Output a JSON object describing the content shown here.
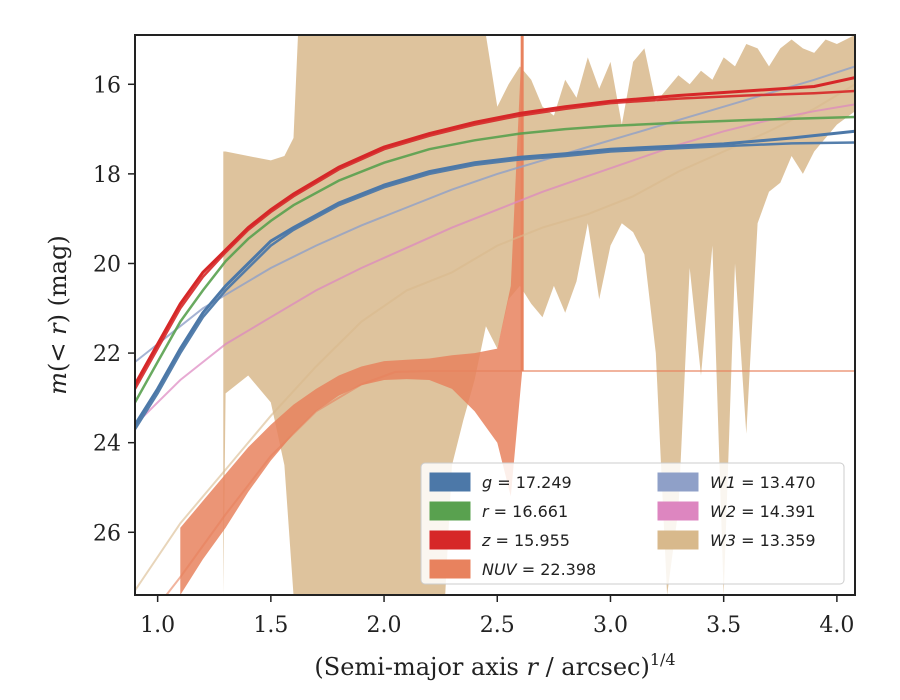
{
  "chart_data": {
    "type": "line",
    "xlabel": "(Semi-major axis r / arcsec)^(1/4)",
    "xlabel_parts": {
      "lead": "(Semi-major axis ",
      "var": "r",
      "mid": " / arcsec)",
      "sup": "1/4"
    },
    "ylabel": "m(< r) (mag)",
    "ylabel_parts": {
      "pre": "m",
      "open": "(",
      "var": "< r",
      "close": ") (mag)"
    },
    "xlim": [
      0.9,
      4.08
    ],
    "ylim": [
      27.4,
      14.9
    ],
    "y_inverted": true,
    "x_ticks": [
      "1.0",
      "1.5",
      "2.0",
      "2.5",
      "3.0",
      "3.5",
      "4.0"
    ],
    "y_ticks": [
      "16",
      "18",
      "20",
      "22",
      "24",
      "26"
    ],
    "grid": false,
    "legend_position": "lower-right",
    "legend": [
      {
        "label": "g = 17.249",
        "band": "g",
        "value": "17.249",
        "color": "#4c78a8"
      },
      {
        "label": "r = 16.661",
        "band": "r",
        "value": "16.661",
        "color": "#59a14f"
      },
      {
        "label": "z = 15.955",
        "band": "z",
        "value": "15.955",
        "color": "#d62728"
      },
      {
        "label": "NUV = 22.398",
        "band": "NUV",
        "value": "22.398",
        "color": "#e8825e"
      },
      {
        "label": "W1 = 13.470",
        "band": "W1",
        "value": "13.470",
        "color": "#8fa0c8"
      },
      {
        "label": "W2 = 14.391",
        "band": "W2",
        "value": "14.391",
        "color": "#dd86c0"
      },
      {
        "label": "W3 = 13.359",
        "band": "W3",
        "value": "13.359",
        "color": "#d8b98c"
      }
    ],
    "series": [
      {
        "name": "g",
        "color": "#4c78a8",
        "x": [
          0.9,
          1.0,
          1.1,
          1.2,
          1.3,
          1.4,
          1.5,
          1.6,
          1.8,
          2.0,
          2.2,
          2.4,
          2.6,
          2.8,
          3.0,
          3.2,
          3.5,
          3.8,
          4.08
        ],
        "y": [
          23.7,
          22.9,
          22.0,
          21.2,
          20.6,
          20.1,
          19.6,
          19.25,
          18.7,
          18.3,
          18.0,
          17.8,
          17.68,
          17.6,
          17.5,
          17.45,
          17.38,
          17.32,
          17.3
        ],
        "y_upper": [
          23.6,
          22.8,
          21.9,
          21.1,
          20.5,
          20.0,
          19.5,
          19.2,
          18.65,
          18.25,
          17.95,
          17.75,
          17.63,
          17.55,
          17.45,
          17.4,
          17.33,
          17.2,
          17.05
        ]
      },
      {
        "name": "r",
        "color": "#59a14f",
        "x": [
          0.9,
          1.0,
          1.1,
          1.2,
          1.3,
          1.4,
          1.5,
          1.6,
          1.8,
          2.0,
          2.2,
          2.4,
          2.6,
          2.8,
          3.0,
          3.3,
          3.6,
          4.08
        ],
        "y": [
          23.1,
          22.2,
          21.3,
          20.6,
          19.95,
          19.45,
          19.05,
          18.7,
          18.15,
          17.75,
          17.45,
          17.25,
          17.1,
          17.0,
          16.93,
          16.86,
          16.8,
          16.73
        ]
      },
      {
        "name": "z",
        "color": "#d62728",
        "x": [
          0.9,
          1.0,
          1.1,
          1.2,
          1.3,
          1.4,
          1.5,
          1.6,
          1.8,
          2.0,
          2.2,
          2.4,
          2.6,
          2.8,
          3.0,
          3.3,
          3.6,
          3.9,
          4.08
        ],
        "y": [
          22.8,
          21.9,
          21.0,
          20.3,
          19.75,
          19.25,
          18.85,
          18.5,
          17.9,
          17.45,
          17.15,
          16.9,
          16.7,
          16.55,
          16.42,
          16.32,
          16.25,
          16.2,
          16.15
        ],
        "y_upper": [
          22.7,
          21.8,
          20.9,
          20.2,
          19.7,
          19.2,
          18.8,
          18.45,
          17.85,
          17.4,
          17.1,
          16.85,
          16.65,
          16.5,
          16.38,
          16.25,
          16.15,
          16.05,
          15.85
        ]
      },
      {
        "name": "NUV",
        "color": "#e8825e",
        "x": [
          0.9,
          1.1,
          1.3,
          1.5,
          1.7,
          1.9,
          2.05,
          2.2,
          2.35,
          2.5,
          2.61,
          3.0,
          3.5,
          4.08
        ],
        "y": [
          28.3,
          27.0,
          25.6,
          24.3,
          23.3,
          22.7,
          22.42,
          22.4,
          22.4,
          22.4,
          22.4,
          22.4,
          22.4,
          22.4
        ],
        "band_x": [
          1.1,
          1.2,
          1.3,
          1.4,
          1.5,
          1.6,
          1.7,
          1.8,
          1.9,
          2.0,
          2.1,
          2.2,
          2.3,
          2.4,
          2.5,
          2.56,
          2.61
        ],
        "band_low": [
          27.4,
          26.6,
          25.9,
          25.1,
          24.4,
          23.8,
          23.3,
          22.95,
          22.72,
          22.6,
          22.58,
          22.6,
          22.8,
          23.3,
          24.0,
          25.2,
          22.4
        ],
        "band_high": [
          25.9,
          25.3,
          24.7,
          24.1,
          23.6,
          23.15,
          22.8,
          22.5,
          22.3,
          22.18,
          22.15,
          22.12,
          22.05,
          22.0,
          21.9,
          20.5,
          14.9
        ]
      },
      {
        "name": "W1",
        "color": "#8fa0c8",
        "x": [
          0.9,
          1.0,
          1.1,
          1.2,
          1.3,
          1.5,
          1.7,
          1.9,
          2.1,
          2.3,
          2.5,
          2.7,
          2.9,
          3.1,
          3.3,
          3.5,
          3.7,
          3.9,
          4.08
        ],
        "y": [
          22.2,
          21.8,
          21.4,
          21.0,
          20.7,
          20.1,
          19.6,
          19.15,
          18.75,
          18.35,
          18.0,
          17.7,
          17.4,
          17.1,
          16.8,
          16.5,
          16.2,
          15.9,
          15.6
        ]
      },
      {
        "name": "W2",
        "color": "#dd86c0",
        "x": [
          0.9,
          1.1,
          1.3,
          1.5,
          1.7,
          1.9,
          2.1,
          2.3,
          2.5,
          2.7,
          2.9,
          3.1,
          3.3,
          3.5,
          3.7,
          3.9,
          4.08
        ],
        "y": [
          23.6,
          22.6,
          21.8,
          21.2,
          20.6,
          20.1,
          19.65,
          19.2,
          18.8,
          18.4,
          18.05,
          17.7,
          17.35,
          17.05,
          16.8,
          16.6,
          16.45
        ]
      },
      {
        "name": "W3",
        "color": "#d8b98c",
        "x": [
          0.9,
          1.1,
          1.3,
          1.5,
          1.7,
          1.9,
          2.1,
          2.3,
          2.5,
          2.7,
          2.9,
          3.1,
          3.3,
          3.5,
          3.7,
          3.9,
          4.08
        ],
        "y": [
          27.3,
          25.8,
          24.6,
          23.4,
          22.3,
          21.3,
          20.6,
          20.2,
          19.6,
          19.2,
          18.9,
          18.5,
          17.95,
          17.5,
          17.05,
          16.55,
          16.0
        ],
        "band_x": [
          1.29,
          1.3,
          1.4,
          1.5,
          1.56,
          1.6,
          1.62,
          1.7,
          1.8,
          1.9,
          2.0,
          2.1,
          2.2,
          2.27,
          2.3,
          2.35,
          2.4,
          2.45,
          2.5,
          2.55,
          2.6,
          2.65,
          2.7,
          2.75,
          2.8,
          2.85,
          2.9,
          2.95,
          3.0,
          3.05,
          3.1,
          3.15,
          3.2,
          3.25,
          3.3,
          3.35,
          3.4,
          3.45,
          3.5,
          3.55,
          3.6,
          3.65,
          3.7,
          3.75,
          3.8,
          3.85,
          3.9,
          3.95,
          4.0,
          4.08
        ],
        "band_low": [
          27.4,
          22.9,
          22.5,
          23.1,
          24.5,
          27.4,
          27.4,
          27.4,
          27.4,
          27.4,
          27.4,
          27.4,
          27.4,
          27.4,
          24.5,
          23.5,
          22.6,
          21.4,
          21.9,
          20.8,
          20.5,
          20.9,
          21.2,
          20.5,
          21.1,
          20.4,
          19.1,
          20.8,
          19.6,
          19.1,
          19.3,
          19.8,
          22.0,
          27.4,
          25.5,
          20.1,
          22.5,
          19.6,
          27.4,
          20.0,
          23.8,
          19.1,
          18.4,
          18.2,
          17.6,
          18.0,
          17.5,
          17.2,
          16.9,
          16.6
        ],
        "band_high": [
          17.5,
          17.5,
          17.6,
          17.7,
          17.6,
          17.2,
          14.9,
          14.9,
          14.9,
          14.9,
          14.9,
          14.9,
          14.9,
          14.9,
          14.9,
          14.9,
          14.9,
          14.9,
          16.5,
          16.0,
          15.6,
          15.9,
          16.5,
          16.7,
          15.9,
          16.3,
          15.4,
          16.1,
          15.5,
          16.9,
          15.5,
          15.2,
          16.4,
          16.1,
          15.8,
          16.0,
          15.7,
          15.9,
          15.4,
          15.6,
          15.1,
          15.2,
          15.6,
          15.2,
          15.0,
          15.2,
          15.3,
          15.0,
          15.1,
          14.9
        ]
      }
    ]
  }
}
